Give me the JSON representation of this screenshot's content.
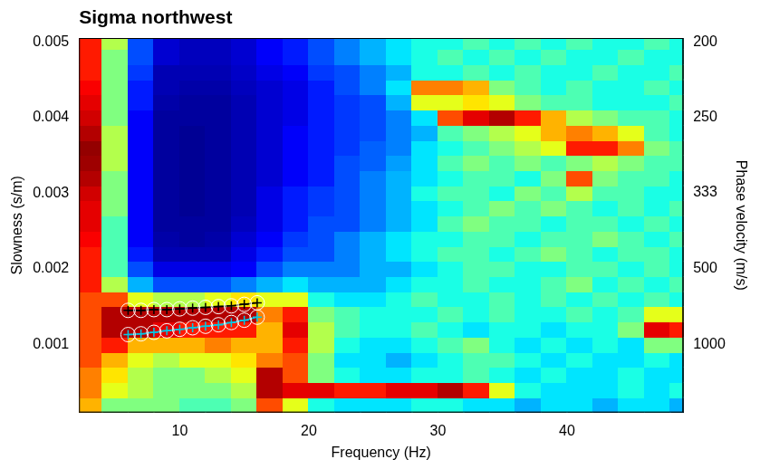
{
  "chart_data": {
    "type": "heatmap",
    "title": "Sigma northwest",
    "x_label": "Frequency (Hz)",
    "y_label": "Slowness (s/m)",
    "y2_label": "Phase velocity (m/s)",
    "xlim": [
      2.2,
      49
    ],
    "xticks": [
      10,
      20,
      30,
      40
    ],
    "ylim": [
      0.0001,
      0.00505
    ],
    "yticks": [
      0.001,
      0.002,
      0.003,
      0.004,
      0.005
    ],
    "y2lim": [
      10000,
      198
    ],
    "y2ticks": [
      1000,
      500,
      333,
      250,
      200
    ],
    "grid": false,
    "zlim": [
      0,
      1
    ],
    "x": [
      3,
      5,
      7,
      9,
      11,
      13,
      15,
      17,
      19,
      21,
      23,
      25,
      27,
      29,
      31,
      33,
      35,
      37,
      39,
      41,
      43,
      45,
      47,
      49
    ],
    "y": [
      0.0002,
      0.0004,
      0.0006,
      0.0008,
      0.001,
      0.0012,
      0.0014,
      0.0016,
      0.0018,
      0.002,
      0.0022,
      0.0024,
      0.0026,
      0.0028,
      0.003,
      0.0032,
      0.0034,
      0.0036,
      0.0038,
      0.004,
      0.0042,
      0.0044,
      0.0046,
      0.0048,
      0.005
    ],
    "cells": [
      [
        0.7,
        0.5,
        0.5,
        0.5,
        0.45,
        0.45,
        0.5,
        0.8,
        0.6,
        0.4,
        0.35,
        0.35,
        0.35,
        0.4,
        0.4,
        0.35,
        0.35,
        0.3,
        0.35,
        0.35,
        0.3,
        0.35,
        0.35,
        0.3
      ],
      [
        0.75,
        0.6,
        0.55,
        0.5,
        0.5,
        0.5,
        0.55,
        0.95,
        0.9,
        0.9,
        0.85,
        0.85,
        0.9,
        0.9,
        0.95,
        0.85,
        0.6,
        0.4,
        0.35,
        0.35,
        0.35,
        0.4,
        0.35,
        0.4
      ],
      [
        0.75,
        0.65,
        0.55,
        0.5,
        0.5,
        0.55,
        0.6,
        0.95,
        0.8,
        0.5,
        0.4,
        0.35,
        0.35,
        0.4,
        0.4,
        0.45,
        0.4,
        0.35,
        0.4,
        0.35,
        0.35,
        0.4,
        0.35,
        0.35
      ],
      [
        0.8,
        0.7,
        0.6,
        0.55,
        0.6,
        0.6,
        0.65,
        0.75,
        0.8,
        0.5,
        0.35,
        0.35,
        0.3,
        0.35,
        0.4,
        0.45,
        0.45,
        0.4,
        0.35,
        0.4,
        0.35,
        0.35,
        0.4,
        0.35
      ],
      [
        0.8,
        0.85,
        0.7,
        0.7,
        0.7,
        0.75,
        0.7,
        0.7,
        0.85,
        0.55,
        0.4,
        0.35,
        0.35,
        0.4,
        0.45,
        0.5,
        0.4,
        0.35,
        0.4,
        0.35,
        0.4,
        0.35,
        0.5,
        0.5
      ],
      [
        0.8,
        0.95,
        0.95,
        0.9,
        0.85,
        0.85,
        0.85,
        0.7,
        0.9,
        0.55,
        0.45,
        0.4,
        0.4,
        0.45,
        0.4,
        0.35,
        0.4,
        0.4,
        0.35,
        0.4,
        0.4,
        0.5,
        0.9,
        0.85
      ],
      [
        0.8,
        0.95,
        0.95,
        0.95,
        0.95,
        0.95,
        0.95,
        0.75,
        0.85,
        0.5,
        0.45,
        0.4,
        0.4,
        0.4,
        0.45,
        0.4,
        0.45,
        0.4,
        0.4,
        0.45,
        0.4,
        0.45,
        0.6,
        0.6
      ],
      [
        0.8,
        0.8,
        0.6,
        0.55,
        0.55,
        0.6,
        0.65,
        0.6,
        0.6,
        0.4,
        0.35,
        0.35,
        0.4,
        0.45,
        0.4,
        0.4,
        0.45,
        0.4,
        0.45,
        0.4,
        0.45,
        0.4,
        0.45,
        0.4
      ],
      [
        0.85,
        0.55,
        0.3,
        0.2,
        0.2,
        0.2,
        0.25,
        0.3,
        0.35,
        0.3,
        0.3,
        0.3,
        0.35,
        0.4,
        0.4,
        0.45,
        0.4,
        0.4,
        0.45,
        0.5,
        0.4,
        0.45,
        0.4,
        0.45
      ],
      [
        0.85,
        0.45,
        0.2,
        0.1,
        0.1,
        0.1,
        0.12,
        0.2,
        0.25,
        0.25,
        0.25,
        0.3,
        0.3,
        0.35,
        0.4,
        0.45,
        0.45,
        0.4,
        0.4,
        0.45,
        0.45,
        0.4,
        0.45,
        0.4
      ],
      [
        0.85,
        0.45,
        0.15,
        0.05,
        0.05,
        0.05,
        0.1,
        0.15,
        0.2,
        0.2,
        0.25,
        0.3,
        0.35,
        0.4,
        0.45,
        0.45,
        0.4,
        0.45,
        0.5,
        0.45,
        0.4,
        0.45,
        0.45,
        0.4
      ],
      [
        0.88,
        0.45,
        0.12,
        0.04,
        0.03,
        0.04,
        0.08,
        0.12,
        0.18,
        0.2,
        0.25,
        0.3,
        0.35,
        0.4,
        0.4,
        0.45,
        0.45,
        0.4,
        0.45,
        0.45,
        0.5,
        0.45,
        0.4,
        0.45
      ],
      [
        0.9,
        0.45,
        0.12,
        0.03,
        0.03,
        0.03,
        0.06,
        0.1,
        0.15,
        0.2,
        0.2,
        0.25,
        0.3,
        0.35,
        0.45,
        0.5,
        0.45,
        0.45,
        0.4,
        0.45,
        0.45,
        0.4,
        0.45,
        0.4
      ],
      [
        0.9,
        0.5,
        0.12,
        0.03,
        0.02,
        0.03,
        0.05,
        0.1,
        0.15,
        0.18,
        0.2,
        0.25,
        0.3,
        0.35,
        0.4,
        0.45,
        0.5,
        0.45,
        0.5,
        0.45,
        0.4,
        0.45,
        0.4,
        0.45
      ],
      [
        0.92,
        0.5,
        0.12,
        0.03,
        0.02,
        0.03,
        0.05,
        0.1,
        0.15,
        0.18,
        0.2,
        0.25,
        0.3,
        0.4,
        0.45,
        0.45,
        0.4,
        0.5,
        0.45,
        0.55,
        0.45,
        0.45,
        0.4,
        0.4
      ],
      [
        0.95,
        0.5,
        0.12,
        0.03,
        0.02,
        0.03,
        0.05,
        0.08,
        0.12,
        0.15,
        0.2,
        0.25,
        0.3,
        0.35,
        0.4,
        0.45,
        0.45,
        0.4,
        0.5,
        0.8,
        0.5,
        0.45,
        0.45,
        0.4
      ],
      [
        0.97,
        0.55,
        0.12,
        0.03,
        0.02,
        0.03,
        0.05,
        0.08,
        0.12,
        0.15,
        0.2,
        0.22,
        0.28,
        0.35,
        0.45,
        0.5,
        0.45,
        0.5,
        0.45,
        0.5,
        0.55,
        0.5,
        0.45,
        0.45
      ],
      [
        0.98,
        0.55,
        0.12,
        0.03,
        0.02,
        0.03,
        0.05,
        0.08,
        0.12,
        0.15,
        0.18,
        0.22,
        0.25,
        0.35,
        0.4,
        0.45,
        0.5,
        0.55,
        0.6,
        0.85,
        0.85,
        0.75,
        0.5,
        0.45
      ],
      [
        0.95,
        0.55,
        0.12,
        0.03,
        0.02,
        0.03,
        0.05,
        0.08,
        0.12,
        0.15,
        0.18,
        0.2,
        0.25,
        0.3,
        0.45,
        0.5,
        0.55,
        0.6,
        0.7,
        0.75,
        0.7,
        0.6,
        0.45,
        0.4
      ],
      [
        0.92,
        0.5,
        0.12,
        0.03,
        0.03,
        0.03,
        0.05,
        0.08,
        0.1,
        0.15,
        0.18,
        0.2,
        0.25,
        0.35,
        0.8,
        0.9,
        0.95,
        0.85,
        0.7,
        0.55,
        0.5,
        0.45,
        0.45,
        0.4
      ],
      [
        0.9,
        0.5,
        0.15,
        0.04,
        0.03,
        0.03,
        0.05,
        0.08,
        0.1,
        0.15,
        0.18,
        0.2,
        0.3,
        0.6,
        0.6,
        0.65,
        0.6,
        0.5,
        0.45,
        0.45,
        0.4,
        0.4,
        0.4,
        0.45
      ],
      [
        0.88,
        0.5,
        0.15,
        0.05,
        0.04,
        0.04,
        0.06,
        0.08,
        0.1,
        0.15,
        0.2,
        0.25,
        0.35,
        0.75,
        0.75,
        0.7,
        0.5,
        0.45,
        0.4,
        0.45,
        0.4,
        0.4,
        0.45,
        0.4
      ],
      [
        0.85,
        0.5,
        0.18,
        0.05,
        0.05,
        0.05,
        0.07,
        0.1,
        0.12,
        0.18,
        0.2,
        0.25,
        0.3,
        0.4,
        0.4,
        0.45,
        0.4,
        0.45,
        0.4,
        0.4,
        0.45,
        0.4,
        0.4,
        0.45
      ],
      [
        0.85,
        0.5,
        0.2,
        0.08,
        0.06,
        0.06,
        0.08,
        0.12,
        0.15,
        0.2,
        0.25,
        0.3,
        0.35,
        0.4,
        0.45,
        0.4,
        0.45,
        0.4,
        0.45,
        0.4,
        0.4,
        0.45,
        0.4,
        0.4
      ],
      [
        0.85,
        0.55,
        0.2,
        0.08,
        0.06,
        0.06,
        0.08,
        0.12,
        0.15,
        0.2,
        0.25,
        0.3,
        0.35,
        0.4,
        0.4,
        0.45,
        0.4,
        0.45,
        0.4,
        0.45,
        0.4,
        0.4,
        0.45,
        0.4
      ]
    ],
    "series": [
      {
        "color": "#000000",
        "marker": "cross",
        "line_style": "solid",
        "x": [
          6,
          7,
          8,
          9,
          10,
          11,
          12,
          13,
          14,
          15,
          16
        ],
        "values": [
          0.00145,
          0.00145,
          0.00146,
          0.00146,
          0.00147,
          0.00148,
          0.00149,
          0.0015,
          0.00151,
          0.00153,
          0.00155
        ]
      },
      {
        "color": "#00c8e6",
        "marker": "cross",
        "line_style": "solid",
        "x": [
          6,
          7,
          8,
          9,
          10,
          11,
          12,
          13,
          14,
          15,
          16
        ],
        "values": [
          0.00113,
          0.00114,
          0.00116,
          0.00118,
          0.0012,
          0.00122,
          0.00124,
          0.00126,
          0.00129,
          0.00132,
          0.00136
        ]
      }
    ]
  }
}
